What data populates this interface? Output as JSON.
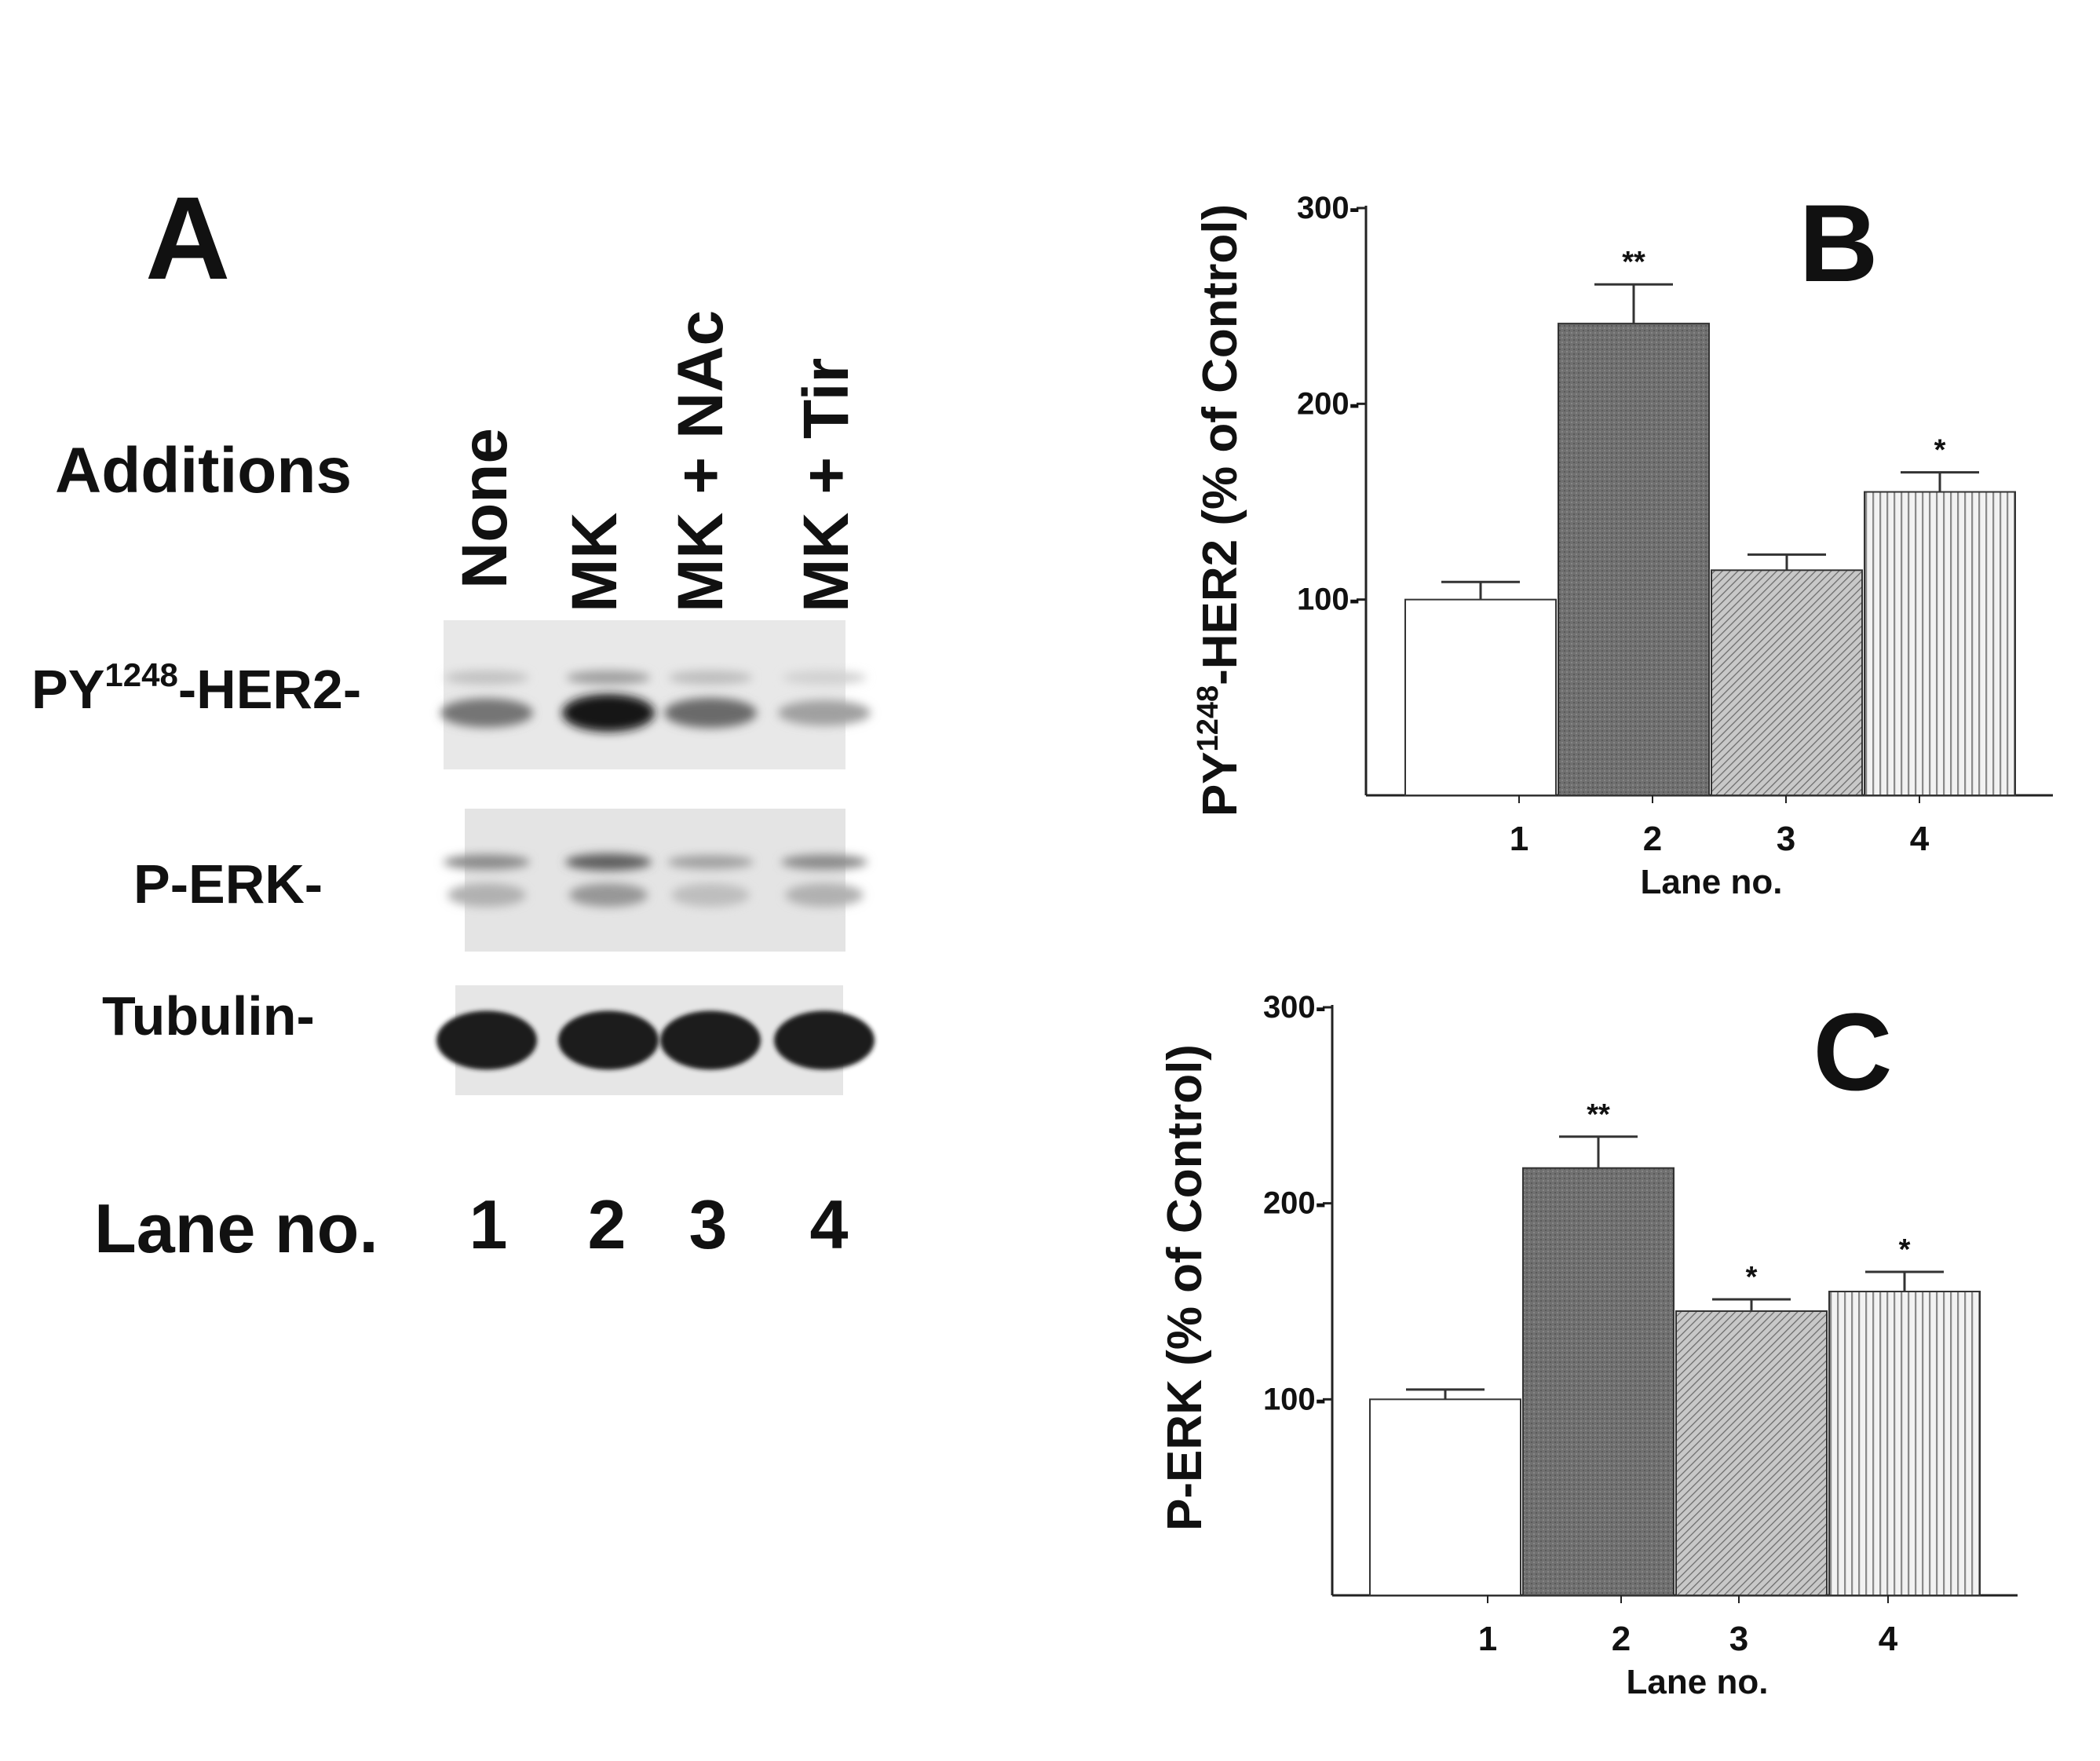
{
  "panel_a": {
    "letter": "A",
    "additions_label": "Additions",
    "conditions": [
      "None",
      "MK",
      "MK + NAc",
      "MK + Tir"
    ],
    "blot_labels": {
      "her2_prefix": "PY",
      "her2_sup": "1248",
      "her2_suffix": "-HER2-",
      "perk": "P-ERK-",
      "tubulin": "Tubulin-"
    },
    "lane_label": "Lane no.",
    "lanes": [
      "1",
      "2",
      "3",
      "4"
    ],
    "band_intensity": {
      "her2": [
        0.55,
        1.0,
        0.6,
        0.35
      ],
      "perk": [
        0.45,
        0.65,
        0.35,
        0.45
      ],
      "tubulin": [
        0.95,
        0.95,
        0.95,
        0.95
      ]
    }
  },
  "chart_data": [
    {
      "type": "bar",
      "panel_letter": "B",
      "categories": [
        "1",
        "2",
        "3",
        "4"
      ],
      "values": [
        100,
        241,
        115,
        155
      ],
      "errors": [
        9,
        20,
        8,
        10
      ],
      "significance": [
        "",
        "**",
        "",
        "*"
      ],
      "xlabel": "Lane no.",
      "ylabel_prefix": "PY",
      "ylabel_sup": "1248",
      "ylabel_suffix": "-HER2 (% of Control)",
      "yticks": [
        "100-",
        "200-",
        "300-"
      ],
      "ytick_values": [
        100,
        200,
        300
      ],
      "ylim": [
        0,
        300
      ],
      "fills": [
        "white",
        "dark",
        "hatch",
        "stripes"
      ]
    },
    {
      "type": "bar",
      "panel_letter": "C",
      "categories": [
        "1",
        "2",
        "3",
        "4"
      ],
      "values": [
        100,
        218,
        145,
        155
      ],
      "errors": [
        5,
        16,
        6,
        10
      ],
      "significance": [
        "",
        "**",
        "*",
        "*"
      ],
      "xlabel": "Lane no.",
      "ylabel": "P-ERK (% of Control)",
      "yticks": [
        "100-",
        "200-",
        "300-"
      ],
      "ytick_values": [
        100,
        200,
        300
      ],
      "ylim": [
        0,
        300
      ],
      "fills": [
        "white",
        "dark",
        "hatch",
        "stripes"
      ]
    }
  ]
}
